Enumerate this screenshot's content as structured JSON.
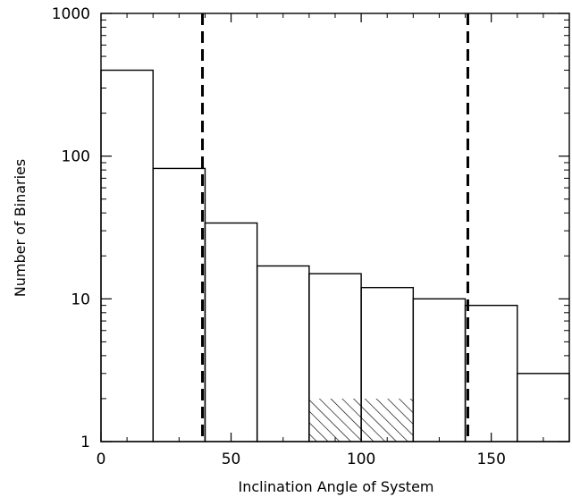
{
  "chart_data": {
    "type": "bar",
    "title": "",
    "xlabel": "Inclination Angle of System",
    "ylabel": "Number of Binaries",
    "xlim": [
      0,
      180
    ],
    "ylim": [
      1,
      1000
    ],
    "y_scale": "log",
    "x_ticks": [
      {
        "value": 0,
        "label": "0"
      },
      {
        "value": 50,
        "label": "50"
      },
      {
        "value": 100,
        "label": "100"
      },
      {
        "value": 150,
        "label": "150"
      }
    ],
    "y_ticks": [
      {
        "value": 1,
        "label": "1"
      },
      {
        "value": 10,
        "label": "10"
      },
      {
        "value": 100,
        "label": "100"
      },
      {
        "value": 1000,
        "label": "1000"
      }
    ],
    "bins": [
      {
        "x0": 0,
        "x1": 20,
        "value": 400
      },
      {
        "x0": 20,
        "x1": 40,
        "value": 82
      },
      {
        "x0": 40,
        "x1": 60,
        "value": 34
      },
      {
        "x0": 60,
        "x1": 80,
        "value": 17
      },
      {
        "x0": 80,
        "x1": 100,
        "value": 15
      },
      {
        "x0": 100,
        "x1": 120,
        "value": 12
      },
      {
        "x0": 120,
        "x1": 140,
        "value": 10
      },
      {
        "x0": 140,
        "x1": 160,
        "value": 9
      },
      {
        "x0": 160,
        "x1": 180,
        "value": 3
      }
    ],
    "hatched_bins": [
      {
        "x0": 80,
        "x1": 100,
        "value": 2
      },
      {
        "x0": 100,
        "x1": 120,
        "value": 2
      }
    ],
    "vertical_dashed_lines": [
      39,
      141
    ],
    "grid": false,
    "legend": "none"
  }
}
